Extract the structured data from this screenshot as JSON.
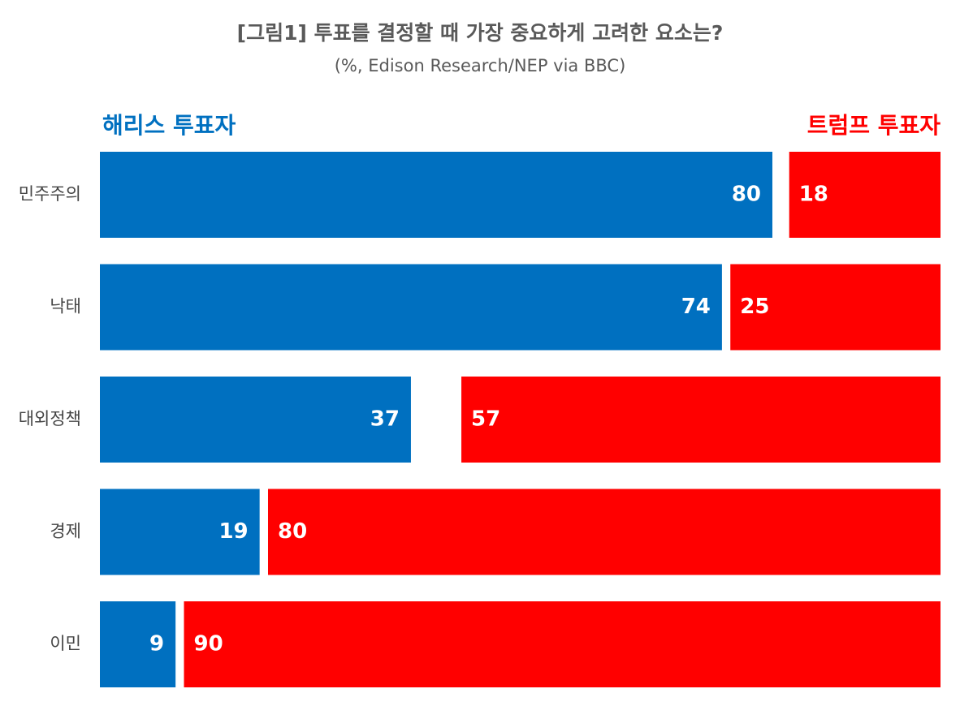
{
  "chart_data": {
    "type": "bar",
    "title": "[그림1] 투표를 결정할 때 가장 중요하게 고려한 요소는?",
    "subtitle": "(%, Edison Research/NEP via BBC)",
    "categories": [
      "민주주의",
      "낙태",
      "대외정책",
      "경제",
      "이민"
    ],
    "xlim": [
      0,
      100
    ],
    "series": [
      {
        "name": "해리스 투표자",
        "color": "#0070c0",
        "values": [
          80,
          74,
          37,
          19,
          9
        ]
      },
      {
        "name": "트럼프 투표자",
        "color": "#ff0000",
        "values": [
          18,
          25,
          57,
          80,
          90
        ]
      }
    ]
  }
}
